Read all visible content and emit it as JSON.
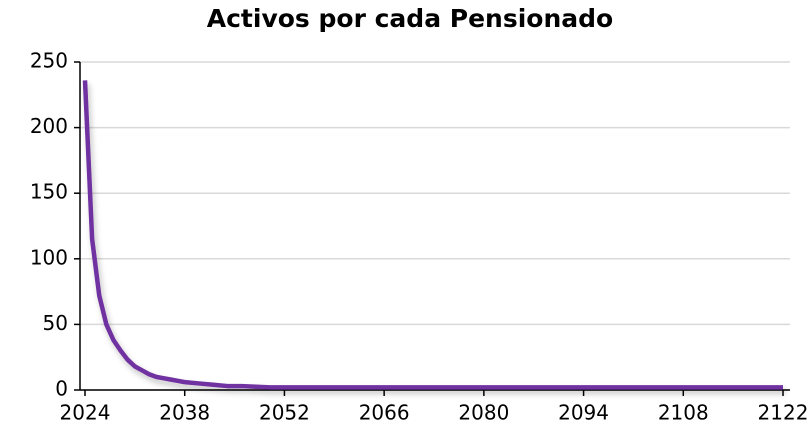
{
  "chart_data": {
    "type": "line",
    "title": "Activos por cada Pensionado",
    "x": [
      2024,
      2025,
      2026,
      2027,
      2028,
      2029,
      2030,
      2031,
      2032,
      2033,
      2034,
      2035,
      2036,
      2037,
      2038,
      2040,
      2042,
      2044,
      2046,
      2048,
      2050,
      2056,
      2062,
      2068,
      2074,
      2080,
      2086,
      2092,
      2098,
      2104,
      2110,
      2116,
      2122
    ],
    "series": [
      {
        "name": "Activos por cada Pensionado",
        "color": "#7030a0",
        "values": [
          236,
          115,
          72,
          50,
          38,
          30,
          23,
          18,
          15,
          12,
          10,
          9,
          8,
          7,
          6,
          5,
          4,
          3,
          3,
          2.5,
          2,
          2,
          2,
          2,
          2,
          2,
          2,
          2,
          2,
          2,
          2,
          2,
          2
        ]
      }
    ],
    "xlim": [
      2024,
      2122
    ],
    "xticks": [
      2024,
      2038,
      2052,
      2066,
      2080,
      2094,
      2108,
      2122
    ],
    "ylim": [
      0,
      250
    ],
    "yticks": [
      0,
      50,
      100,
      150,
      200,
      250
    ],
    "grid": true
  }
}
